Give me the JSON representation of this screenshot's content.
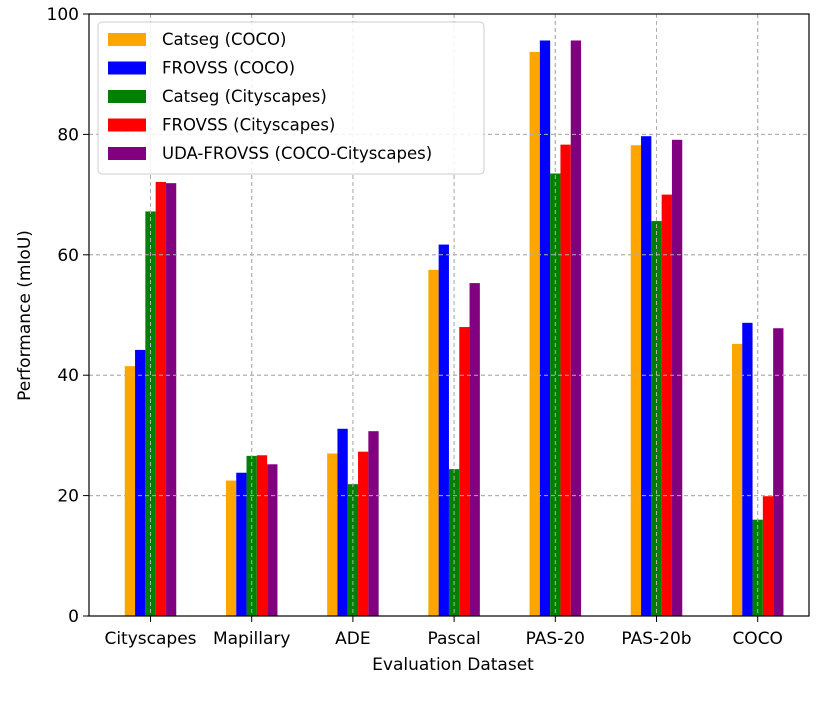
{
  "chart_data": {
    "type": "bar",
    "title": "",
    "xlabel": "Evaluation Dataset",
    "ylabel": "Performance (mIoU)",
    "ylim": [
      0,
      100
    ],
    "yticks": [
      0,
      20,
      40,
      60,
      80,
      100
    ],
    "grid": true,
    "legend_position": "top-left",
    "categories": [
      "Cityscapes",
      "Mapillary",
      "ADE",
      "Pascal",
      "PAS-20",
      "PAS-20b",
      "COCO"
    ],
    "series": [
      {
        "name": "Catseg (COCO)",
        "color": "#ffa500",
        "values": [
          41.5,
          22.5,
          27.0,
          57.5,
          93.7,
          78.2,
          45.2
        ]
      },
      {
        "name": "FROVSS (COCO)",
        "color": "#0000ff",
        "values": [
          44.2,
          23.8,
          31.1,
          61.7,
          95.6,
          79.7,
          48.7
        ]
      },
      {
        "name": "Catseg (Cityscapes)",
        "color": "#008000",
        "values": [
          67.2,
          26.6,
          21.9,
          24.4,
          73.5,
          65.6,
          16.0
        ]
      },
      {
        "name": "FROVSS (Cityscapes)",
        "color": "#ff0000",
        "values": [
          72.1,
          26.7,
          27.3,
          48.0,
          78.3,
          70.0,
          19.9
        ]
      },
      {
        "name": "UDA-FROVSS (COCO-Cityscapes)",
        "color": "#800080",
        "values": [
          71.9,
          25.2,
          30.7,
          55.3,
          95.6,
          79.1,
          47.8
        ]
      }
    ]
  }
}
